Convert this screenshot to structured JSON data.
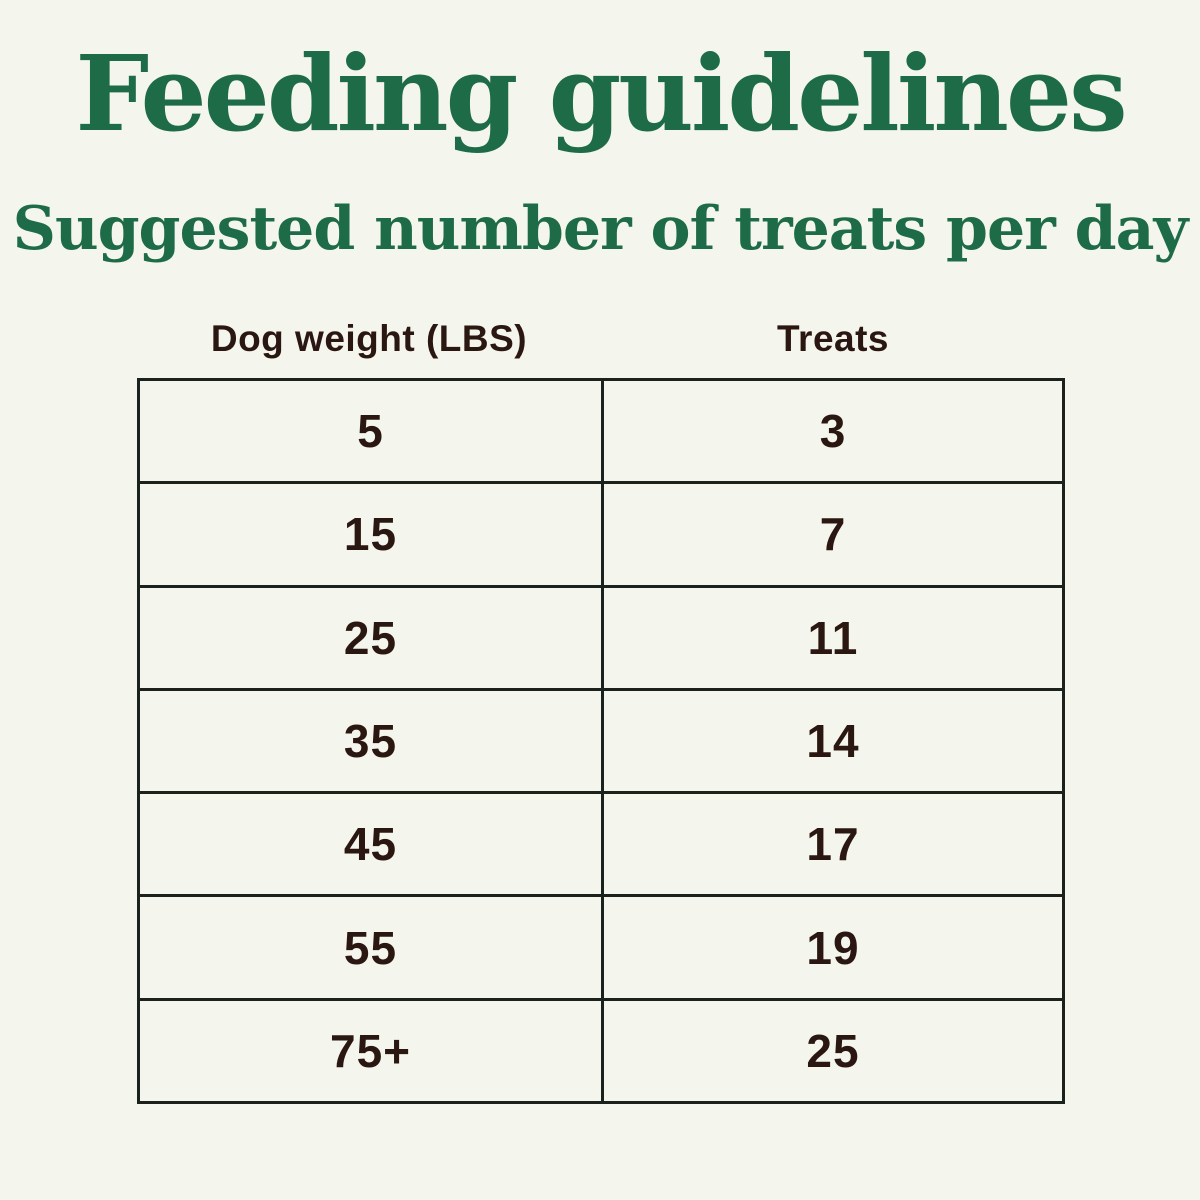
{
  "page": {
    "title": "Feeding guidelines",
    "subtitle": "Suggested number of treats per day"
  },
  "table": {
    "headers": {
      "weight": "Dog weight (LBS)",
      "treats": "Treats"
    },
    "rows": [
      {
        "weight": "5",
        "treats": "3"
      },
      {
        "weight": "15",
        "treats": "7"
      },
      {
        "weight": "25",
        "treats": "11"
      },
      {
        "weight": "35",
        "treats": "14"
      },
      {
        "weight": "45",
        "treats": "17"
      },
      {
        "weight": "55",
        "treats": "19"
      },
      {
        "weight": "75+",
        "treats": "25"
      }
    ]
  },
  "colors": {
    "background": "#f4f5ec",
    "heading_green": "#1e6b47",
    "text_dark": "#2b1712",
    "table_border": "#1b211c"
  },
  "chart_data": {
    "type": "table",
    "title": "Feeding guidelines",
    "subtitle": "Suggested number of treats per day",
    "columns": [
      "Dog weight (LBS)",
      "Treats"
    ],
    "rows": [
      [
        "5",
        "3"
      ],
      [
        "15",
        "7"
      ],
      [
        "25",
        "11"
      ],
      [
        "35",
        "14"
      ],
      [
        "45",
        "17"
      ],
      [
        "55",
        "19"
      ],
      [
        "75+",
        "25"
      ]
    ],
    "dog_weight_lbs": [
      5,
      15,
      25,
      35,
      45,
      55,
      75
    ],
    "treats_per_day": [
      3,
      7,
      11,
      14,
      17,
      19,
      25
    ],
    "layout": "two-column bordered table, headers above table, all content centered"
  }
}
